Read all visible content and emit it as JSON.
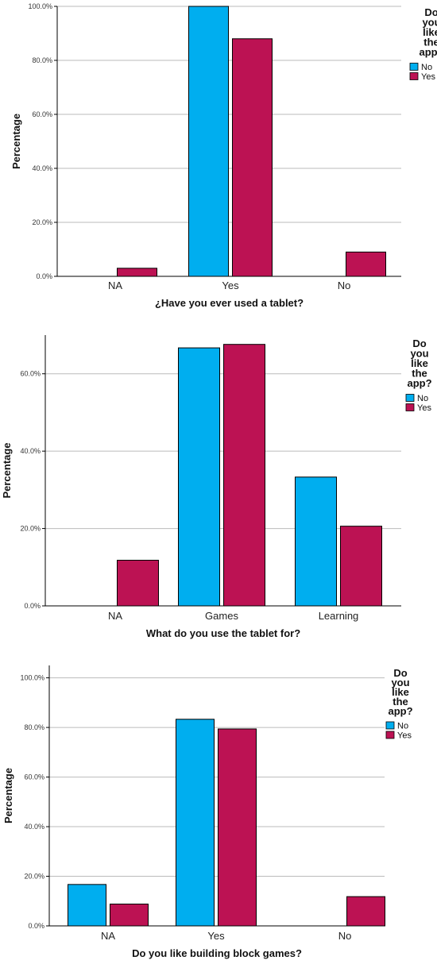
{
  "legend": {
    "title_lines": [
      "Do",
      "you",
      "like",
      "the",
      "app?"
    ],
    "entries": [
      "No",
      "Yes"
    ]
  },
  "colors": {
    "No": "#00AEEF",
    "Yes": "#BC1253",
    "grid": "#BBBBBB",
    "axis": "#000000"
  },
  "chart_data": [
    {
      "type": "bar",
      "categories": [
        "NA",
        "Yes",
        "No"
      ],
      "series": [
        {
          "name": "No",
          "values": [
            0.0,
            100.0,
            0.0
          ]
        },
        {
          "name": "Yes",
          "values": [
            3.0,
            88.0,
            9.0
          ]
        }
      ],
      "xlabel": "¿Have you ever used a tablet?",
      "ylabel": "Percentage",
      "ylim": [
        0,
        100
      ],
      "yticks": [
        0,
        20,
        40,
        60,
        80,
        100
      ],
      "ytick_labels": [
        "0.0%",
        "20.0%",
        "40.0%",
        "60.0%",
        "80.0%",
        "100.0%"
      ],
      "grid": true
    },
    {
      "type": "bar",
      "categories": [
        "NA",
        "Games",
        "Learning"
      ],
      "series": [
        {
          "name": "No",
          "values": [
            0.0,
            66.7,
            33.3
          ]
        },
        {
          "name": "Yes",
          "values": [
            11.8,
            67.6,
            20.6
          ]
        }
      ],
      "xlabel": "What do you use the tablet for?",
      "ylabel": "Percentage",
      "ylim": [
        0,
        70
      ],
      "yticks": [
        0,
        20,
        40,
        60
      ],
      "ytick_labels": [
        "0.0%",
        "20.0%",
        "40.0%",
        "60.0%"
      ],
      "grid": true
    },
    {
      "type": "bar",
      "categories": [
        "NA",
        "Yes",
        "No"
      ],
      "series": [
        {
          "name": "No",
          "values": [
            16.7,
            83.3,
            0.0
          ]
        },
        {
          "name": "Yes",
          "values": [
            8.8,
            79.4,
            11.8
          ]
        }
      ],
      "xlabel": "Do you like building block games?",
      "ylabel": "Percentage",
      "ylim": [
        0,
        105
      ],
      "yticks": [
        0,
        20,
        40,
        60,
        80,
        100
      ],
      "ytick_labels": [
        "0.0%",
        "20.0%",
        "40.0%",
        "60.0%",
        "80.0%",
        "100.0%"
      ],
      "grid": true
    }
  ]
}
